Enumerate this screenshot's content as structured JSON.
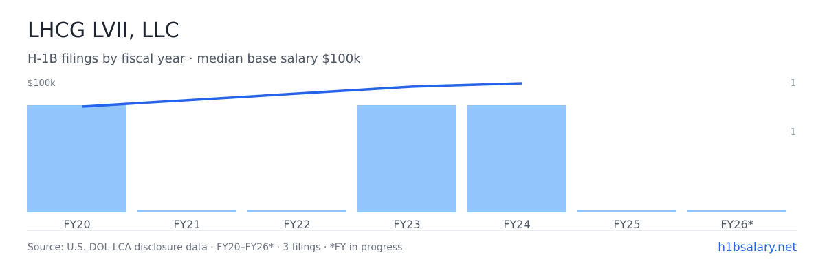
{
  "header": {
    "title": "LHCG LVII, LLC",
    "subtitle": "H-1B filings by fiscal year · median base salary $100k"
  },
  "footer": {
    "source": "Source: U.S. DOL LCA disclosure data · FY20–FY26* · 3 filings · *FY in progress",
    "brand": "h1bsalary.net"
  },
  "chart_data": {
    "type": "bar",
    "categories": [
      "FY20",
      "FY21",
      "FY22",
      "FY23",
      "FY24",
      "FY25",
      "FY26*"
    ],
    "series": [
      {
        "type": "bar",
        "axis": "right",
        "values": [
          1,
          0,
          0,
          1,
          1,
          0,
          0
        ],
        "color": "#93c5fd"
      },
      {
        "type": "line",
        "axis": "left",
        "values": [
          97,
          null,
          null,
          103,
          104,
          null,
          null
        ],
        "color": "#2563eb"
      }
    ],
    "left_axis": {
      "tick_labels": [
        "$100k"
      ]
    },
    "right_axis": {
      "tick_labels": [
        "1",
        "1"
      ]
    },
    "grid": false,
    "legend": "none"
  }
}
